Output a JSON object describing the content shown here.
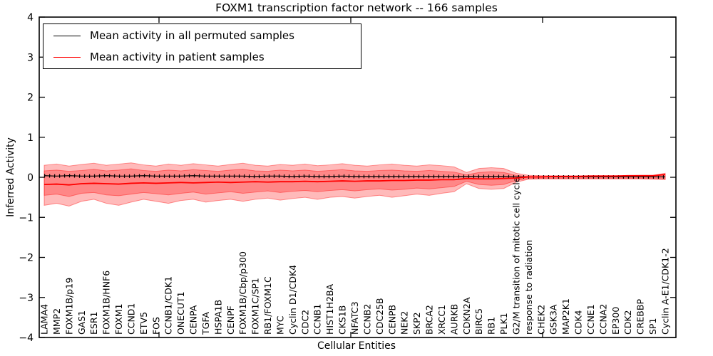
{
  "figure": {
    "title": "FOXM1 transcription factor network -- 166 samples",
    "xlabel": "Cellular Entities",
    "ylabel": "Inferred Activity"
  },
  "legend": {
    "items": [
      {
        "label": "Mean activity in all permuted samples",
        "color": "#000000"
      },
      {
        "label": "Mean activity in patient samples",
        "color": "#ff0000"
      }
    ]
  },
  "chart_data": {
    "type": "line",
    "title": "FOXM1 transcription factor network -- 166 samples",
    "xlabel": "Cellular Entities",
    "ylabel": "Inferred Activity",
    "ylim": [
      -4,
      4
    ],
    "yticks": [
      4,
      3,
      2,
      1,
      0,
      -1,
      -2,
      -3,
      -4
    ],
    "ytick_labels": [
      "4",
      "3",
      "2",
      "1",
      "0",
      "−1",
      "−2",
      "−3",
      "−4"
    ],
    "grid": false,
    "legend_position": "upper left",
    "categories": [
      "LAMA4",
      "MMP2",
      "FOXM1B/p19",
      "GAS1",
      "ESR1",
      "FOXM1B/HNF6",
      "FOXM1",
      "CCND1",
      "ETV5",
      "FOS",
      "CCNB1/CDK1",
      "ONECUT1",
      "CENPA",
      "TGFA",
      "HSPA1B",
      "CENPF",
      "FOXM1B/Cbp/p300",
      "FOXM1C/SP1",
      "RB1/FOXM1C",
      "MYC",
      "Cyclin D1/CDK4",
      "CDC2",
      "CCNB1",
      "HIST1H2BA",
      "CKS1B",
      "NFATC3",
      "CCNB2",
      "CDC25B",
      "CENPB",
      "NEK2",
      "SKP2",
      "BRCA2",
      "XRCC1",
      "AURKB",
      "CDKN2A",
      "BIRC5",
      "RB1",
      "PLK1",
      "G2/M transition of mitotic cell cycle",
      "response to radiation",
      "CHEK2",
      "GSK3A",
      "MAP2K1",
      "CDK4",
      "CCNE1",
      "CCNA2",
      "EP300",
      "CDK2",
      "CREBBP",
      "SP1",
      "Cyclin A-E1/CDK1-2"
    ],
    "series": [
      {
        "name": "Mean activity in all permuted samples",
        "color": "#000000",
        "line_style": "solid-with-tick-markers",
        "values": [
          0.04,
          0.03,
          0.04,
          0.03,
          0.03,
          0.04,
          0.03,
          0.03,
          0.04,
          0.03,
          0.03,
          0.03,
          0.04,
          0.03,
          0.03,
          0.03,
          0.03,
          0.02,
          0.03,
          0.03,
          0.02,
          0.03,
          0.02,
          0.02,
          0.03,
          0.02,
          0.02,
          0.02,
          0.02,
          0.02,
          0.02,
          0.02,
          0.02,
          0.02,
          0.02,
          0.02,
          0.02,
          0.02,
          0.01,
          0.01,
          0.01,
          0.01,
          0.01,
          0.01,
          0.01,
          0.01,
          0.01,
          0.01,
          0.01,
          0.01,
          0.01
        ]
      },
      {
        "name": "Mean activity in patient samples",
        "color": "#ff0000",
        "line_style": "solid",
        "values": [
          -0.18,
          -0.17,
          -0.19,
          -0.16,
          -0.15,
          -0.16,
          -0.17,
          -0.15,
          -0.14,
          -0.15,
          -0.14,
          -0.13,
          -0.14,
          -0.13,
          -0.12,
          -0.13,
          -0.12,
          -0.11,
          -0.12,
          -0.11,
          -0.11,
          -0.1,
          -0.11,
          -0.1,
          -0.09,
          -0.1,
          -0.09,
          -0.09,
          -0.08,
          -0.08,
          -0.07,
          -0.07,
          -0.06,
          -0.06,
          -0.03,
          -0.04,
          -0.04,
          -0.03,
          -0.02,
          0.01,
          0.01,
          0.02,
          0.02,
          0.02,
          0.03,
          0.03,
          0.03,
          0.04,
          0.04,
          0.04,
          0.07
        ]
      }
    ],
    "bands": [
      {
        "name": "patient activity spread (outer)",
        "color": "#ff0000",
        "opacity": 0.27,
        "top": [
          0.3,
          0.33,
          0.28,
          0.32,
          0.35,
          0.3,
          0.33,
          0.36,
          0.31,
          0.28,
          0.33,
          0.3,
          0.34,
          0.31,
          0.28,
          0.32,
          0.35,
          0.3,
          0.28,
          0.32,
          0.3,
          0.33,
          0.29,
          0.31,
          0.34,
          0.3,
          0.28,
          0.31,
          0.33,
          0.3,
          0.28,
          0.31,
          0.29,
          0.26,
          0.12,
          0.22,
          0.24,
          0.22,
          0.1,
          0.05,
          0.04,
          0.04,
          0.04,
          0.04,
          0.04,
          0.04,
          0.04,
          0.04,
          0.05,
          0.05,
          0.1
        ],
        "bottom": [
          -0.7,
          -0.65,
          -0.72,
          -0.6,
          -0.55,
          -0.65,
          -0.7,
          -0.62,
          -0.55,
          -0.6,
          -0.65,
          -0.58,
          -0.55,
          -0.62,
          -0.58,
          -0.55,
          -0.6,
          -0.55,
          -0.52,
          -0.57,
          -0.53,
          -0.5,
          -0.55,
          -0.5,
          -0.48,
          -0.52,
          -0.48,
          -0.45,
          -0.5,
          -0.46,
          -0.42,
          -0.45,
          -0.4,
          -0.36,
          -0.16,
          -0.28,
          -0.3,
          -0.28,
          -0.12,
          -0.05,
          -0.04,
          -0.04,
          -0.04,
          -0.04,
          -0.04,
          -0.04,
          -0.04,
          -0.04,
          -0.04,
          -0.05,
          -0.06
        ]
      },
      {
        "name": "patient activity spread (inner)",
        "color": "#ff0000",
        "opacity": 0.27,
        "top": [
          0.16,
          0.18,
          0.15,
          0.17,
          0.2,
          0.16,
          0.18,
          0.21,
          0.17,
          0.15,
          0.18,
          0.16,
          0.19,
          0.17,
          0.15,
          0.18,
          0.2,
          0.16,
          0.15,
          0.18,
          0.16,
          0.18,
          0.15,
          0.17,
          0.19,
          0.16,
          0.15,
          0.17,
          0.18,
          0.16,
          0.15,
          0.17,
          0.15,
          0.13,
          0.06,
          0.12,
          0.14,
          0.12,
          0.05,
          0.02,
          0.02,
          0.02,
          0.02,
          0.02,
          0.02,
          0.02,
          0.02,
          0.02,
          0.03,
          0.03,
          0.06
        ],
        "bottom": [
          -0.45,
          -0.42,
          -0.48,
          -0.4,
          -0.38,
          -0.44,
          -0.46,
          -0.42,
          -0.38,
          -0.41,
          -0.44,
          -0.4,
          -0.37,
          -0.42,
          -0.39,
          -0.36,
          -0.4,
          -0.37,
          -0.34,
          -0.38,
          -0.35,
          -0.33,
          -0.36,
          -0.33,
          -0.31,
          -0.34,
          -0.31,
          -0.29,
          -0.32,
          -0.3,
          -0.27,
          -0.29,
          -0.26,
          -0.23,
          -0.1,
          -0.18,
          -0.2,
          -0.18,
          -0.08,
          -0.03,
          -0.03,
          -0.03,
          -0.03,
          -0.03,
          -0.03,
          -0.03,
          -0.03,
          -0.03,
          -0.03,
          -0.03,
          -0.04
        ]
      }
    ]
  }
}
